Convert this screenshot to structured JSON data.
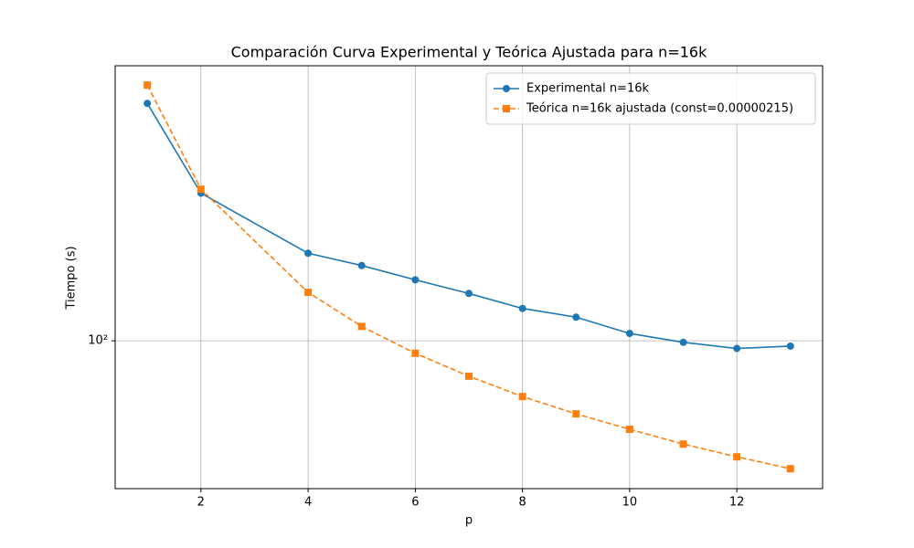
{
  "chart_data": {
    "type": "line",
    "title": "Comparación Curva Experimental y Teórica Ajustada para n=16k",
    "xlabel": "p",
    "ylabel": "Tiempo (s)",
    "x": [
      1,
      2,
      4,
      5,
      6,
      7,
      8,
      9,
      10,
      11,
      12,
      13
    ],
    "series": [
      {
        "name": "Experimental n=16k",
        "color": "#1f77b4",
        "marker": "circle",
        "linestyle": "solid",
        "values": [
          485,
          267,
          179,
          165,
          150,
          137,
          124,
          117,
          105,
          99,
          95,
          96.5
        ]
      },
      {
        "name": "Teórica n=16k ajustada (const=0.00000215)",
        "color": "#ff7f0e",
        "marker": "square",
        "linestyle": "dashed",
        "values": [
          548,
          274,
          138,
          110,
          92,
          79,
          69,
          61.5,
          55.5,
          50.3,
          46.2,
          42.7
        ]
      }
    ],
    "xlim": [
      0.4,
      13.6
    ],
    "xticks": [
      2,
      4,
      6,
      8,
      10,
      12
    ],
    "ylim": [
      37.4,
      623
    ],
    "yticks": [
      {
        "value": 100,
        "label": "10²"
      }
    ],
    "yscale": "log",
    "grid": true,
    "legend": "upper right"
  }
}
